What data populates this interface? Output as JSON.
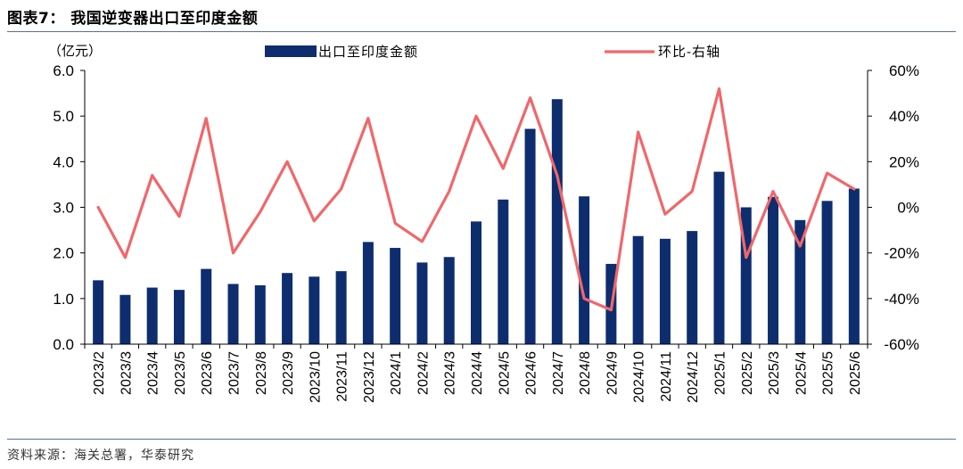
{
  "figure": {
    "title": "图表7：  我国逆变器出口至印度金额",
    "source": "资料来源：海关总署，华泰研究"
  },
  "chart_data": {
    "type": "bar+line",
    "categories": [
      "2023/2",
      "2023/3",
      "2023/4",
      "2023/5",
      "2023/6",
      "2023/7",
      "2023/8",
      "2023/9",
      "2023/10",
      "2023/11",
      "2023/12",
      "2024/1",
      "2024/2",
      "2024/3",
      "2024/4",
      "2024/5",
      "2024/6",
      "2024/7",
      "2024/8",
      "2024/9",
      "2024/10",
      "2024/11",
      "2024/12",
      "2025/1",
      "2025/2",
      "2025/3",
      "2025/4",
      "2025/5",
      "2025/6"
    ],
    "series": [
      {
        "name": "出口至印度金额",
        "type": "bar",
        "axis": "left",
        "color": "#0d2d6e",
        "values": [
          1.4,
          1.08,
          1.24,
          1.19,
          1.65,
          1.32,
          1.29,
          1.56,
          1.48,
          1.6,
          2.24,
          2.11,
          1.79,
          1.91,
          2.69,
          3.17,
          4.72,
          5.37,
          3.24,
          1.76,
          2.37,
          2.31,
          2.48,
          3.78,
          3.0,
          3.23,
          2.72,
          3.14,
          3.41
        ]
      },
      {
        "name": "环比-右轴",
        "type": "line",
        "axis": "right",
        "color": "#f0676a",
        "values": [
          0,
          -22,
          14,
          -4,
          39,
          -20,
          -2,
          20,
          -6,
          8,
          39,
          -7,
          -15,
          7,
          40,
          17,
          48,
          14,
          -40,
          -45,
          33,
          -3,
          7,
          52,
          -22,
          7,
          -17,
          15,
          8
        ]
      }
    ],
    "left_axis": {
      "unit_label": "（亿元）",
      "min": 0,
      "max": 6,
      "ticks": [
        "0.0",
        "1.0",
        "2.0",
        "3.0",
        "4.0",
        "5.0",
        "6.0"
      ]
    },
    "right_axis": {
      "min": -60,
      "max": 60,
      "ticks": [
        "-60%",
        "-40%",
        "-20%",
        "0%",
        "20%",
        "40%",
        "60%"
      ]
    },
    "legend_position": "top",
    "grid": false
  }
}
